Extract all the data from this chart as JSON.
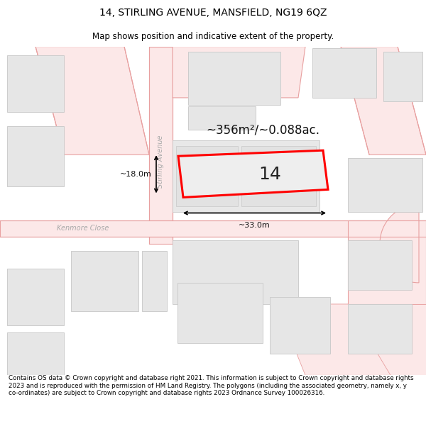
{
  "title": "14, STIRLING AVENUE, MANSFIELD, NG19 6QZ",
  "subtitle": "Map shows position and indicative extent of the property.",
  "footer": "Contains OS data © Crown copyright and database right 2021. This information is subject to Crown copyright and database rights 2023 and is reproduced with the permission of HM Land Registry. The polygons (including the associated geometry, namely x, y co-ordinates) are subject to Crown copyright and database rights 2023 Ordnance Survey 100026316.",
  "area_text": "~356m²/~0.088ac.",
  "number_text": "14",
  "width_label": "~33.0m",
  "height_label": "~18.0m",
  "street1": "Stirling Avenue",
  "street2": "Kenmore Close",
  "bg_color": "#ffffff",
  "map_bg": "#ffffff",
  "road_fill": "#fce8e8",
  "road_edge": "#e8a0a0",
  "bld_fill": "#e6e6e6",
  "bld_edge": "#cccccc",
  "prop_fill": "#eeeeee",
  "prop_edge": "#ff0000",
  "dim_color": "#111111",
  "street_color": "#aaaaaa",
  "title_fontsize": 10,
  "subtitle_fontsize": 8.5,
  "area_fontsize": 12,
  "num_fontsize": 18,
  "dim_fontsize": 8,
  "street_fontsize": 7
}
